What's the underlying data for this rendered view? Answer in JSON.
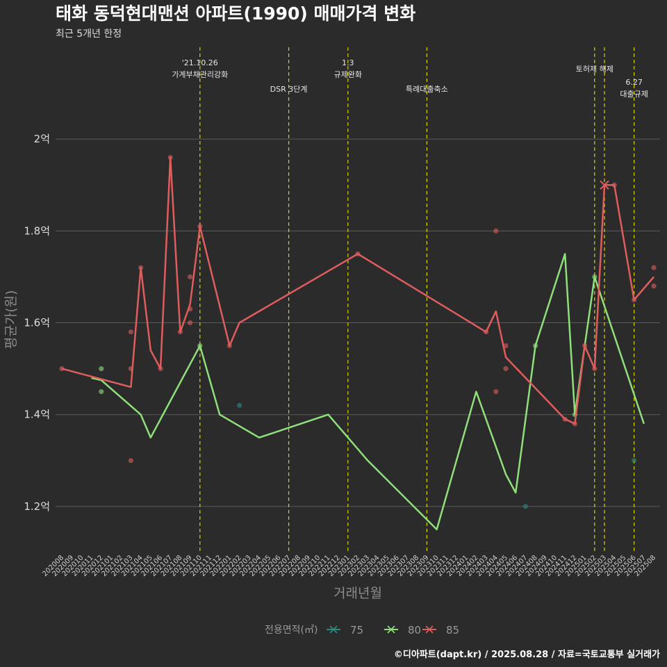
{
  "title": "태화 동덕현대맨션 아파트(1990) 매매가격 변화",
  "subtitle": "최근 5개년 한정",
  "caption": "©디아파트(dapt.kr) / 2025.08.28 / 자료=국토교통부 실거래가",
  "chart_data": {
    "type": "line",
    "xlabel": "거래년월",
    "ylabel": "평균가(원)",
    "y_ticks": [
      {
        "value": 1.2,
        "label": "1.2억"
      },
      {
        "value": 1.4,
        "label": "1.4억"
      },
      {
        "value": 1.6,
        "label": "1.6억"
      },
      {
        "value": 1.8,
        "label": "1.8억"
      },
      {
        "value": 2.0,
        "label": "2억"
      }
    ],
    "ylim": [
      1.1,
      2.2
    ],
    "x_start": "2020-08",
    "x_end": "2025-08",
    "legend_title": "전용면적(㎡)",
    "legend_position": "bottom",
    "grid": true,
    "events": [
      {
        "date": "2021-10",
        "label_lines": [
          "'21.10.26",
          "가계부채관리강화"
        ]
      },
      {
        "date": "2022-07",
        "label_lines": [
          "DSR 3단계"
        ]
      },
      {
        "date": "2023-01",
        "label_lines": [
          "1.3",
          "규제완화"
        ]
      },
      {
        "date": "2023-09",
        "label_lines": [
          "특례대출축소"
        ]
      },
      {
        "date": "2025-02",
        "label_lines": [
          "토허제 해제"
        ]
      },
      {
        "date": "2025-03",
        "label_lines": []
      },
      {
        "date": "2025-06",
        "label_lines": [
          "6.27",
          "대출규제"
        ]
      }
    ],
    "series": [
      {
        "name": "75",
        "color": "#2a8a80",
        "line": [],
        "points": [
          {
            "x": "2022-02",
            "y": 1.42
          },
          {
            "x": "2024-07",
            "y": 1.2
          },
          {
            "x": "2025-06",
            "y": 1.3
          }
        ]
      },
      {
        "name": "80",
        "color": "#8fe07a",
        "line": [
          {
            "x": "2020-11",
            "y": 1.48
          },
          {
            "x": "2020-12",
            "y": 1.475
          },
          {
            "x": "2021-04",
            "y": 1.4
          },
          {
            "x": "2021-05",
            "y": 1.35
          },
          {
            "x": "2021-10",
            "y": 1.55
          },
          {
            "x": "2021-12",
            "y": 1.4
          },
          {
            "x": "2022-04",
            "y": 1.35
          },
          {
            "x": "2022-11",
            "y": 1.4
          },
          {
            "x": "2023-03",
            "y": 1.3
          },
          {
            "x": "2023-10",
            "y": 1.15
          },
          {
            "x": "2024-02",
            "y": 1.45
          },
          {
            "x": "2024-05",
            "y": 1.27
          },
          {
            "x": "2024-06",
            "y": 1.23
          },
          {
            "x": "2024-08",
            "y": 1.55
          },
          {
            "x": "2024-11",
            "y": 1.75
          },
          {
            "x": "2024-12",
            "y": 1.4
          },
          {
            "x": "2025-02",
            "y": 1.7
          },
          {
            "x": "2025-07",
            "y": 1.38
          }
        ],
        "points": [
          {
            "x": "2020-12",
            "y": 1.5
          },
          {
            "x": "2020-12",
            "y": 1.45
          },
          {
            "x": "2021-10",
            "y": 1.55
          },
          {
            "x": "2024-08",
            "y": 1.55
          },
          {
            "x": "2024-12",
            "y": 1.4
          },
          {
            "x": "2025-02",
            "y": 1.7
          }
        ]
      },
      {
        "name": "85",
        "color": "#e05d5d",
        "line": [
          {
            "x": "2020-08",
            "y": 1.5
          },
          {
            "x": "2021-03",
            "y": 1.46
          },
          {
            "x": "2021-04",
            "y": 1.72
          },
          {
            "x": "2021-05",
            "y": 1.54
          },
          {
            "x": "2021-06",
            "y": 1.5
          },
          {
            "x": "2021-07",
            "y": 1.96
          },
          {
            "x": "2021-08",
            "y": 1.58
          },
          {
            "x": "2021-09",
            "y": 1.64
          },
          {
            "x": "2021-10",
            "y": 1.81
          },
          {
            "x": "2022-01",
            "y": 1.55
          },
          {
            "x": "2022-02",
            "y": 1.6
          },
          {
            "x": "2023-02",
            "y": 1.75
          },
          {
            "x": "2024-03",
            "y": 1.58
          },
          {
            "x": "2024-04",
            "y": 1.625
          },
          {
            "x": "2024-05",
            "y": 1.525
          },
          {
            "x": "2024-11",
            "y": 1.39
          },
          {
            "x": "2024-12",
            "y": 1.38
          },
          {
            "x": "2025-01",
            "y": 1.55
          },
          {
            "x": "2025-02",
            "y": 1.5
          },
          {
            "x": "2025-03",
            "y": 1.9
          },
          {
            "x": "2025-04",
            "y": 1.9
          },
          {
            "x": "2025-06",
            "y": 1.65
          },
          {
            "x": "2025-08",
            "y": 1.7
          }
        ],
        "points": [
          {
            "x": "2020-08",
            "y": 1.5
          },
          {
            "x": "2021-03",
            "y": 1.58
          },
          {
            "x": "2021-03",
            "y": 1.5
          },
          {
            "x": "2021-03",
            "y": 1.3
          },
          {
            "x": "2021-04",
            "y": 1.72
          },
          {
            "x": "2021-06",
            "y": 1.5
          },
          {
            "x": "2021-07",
            "y": 1.96
          },
          {
            "x": "2021-08",
            "y": 1.58
          },
          {
            "x": "2021-09",
            "y": 1.7
          },
          {
            "x": "2021-09",
            "y": 1.63
          },
          {
            "x": "2021-09",
            "y": 1.6
          },
          {
            "x": "2021-10",
            "y": 1.81
          },
          {
            "x": "2022-01",
            "y": 1.55
          },
          {
            "x": "2023-02",
            "y": 1.75
          },
          {
            "x": "2024-03",
            "y": 1.58
          },
          {
            "x": "2024-04",
            "y": 1.8
          },
          {
            "x": "2024-04",
            "y": 1.45
          },
          {
            "x": "2024-05",
            "y": 1.55
          },
          {
            "x": "2024-05",
            "y": 1.5
          },
          {
            "x": "2024-11",
            "y": 1.39
          },
          {
            "x": "2024-12",
            "y": 1.38
          },
          {
            "x": "2025-01",
            "y": 1.55
          },
          {
            "x": "2025-02",
            "y": 1.5
          },
          {
            "x": "2025-04",
            "y": 1.9
          },
          {
            "x": "2025-06",
            "y": 1.65
          },
          {
            "x": "2025-08",
            "y": 1.72
          },
          {
            "x": "2025-08",
            "y": 1.68
          }
        ],
        "cross_points": [
          {
            "x": "2025-03",
            "y": 1.9
          }
        ]
      }
    ]
  }
}
